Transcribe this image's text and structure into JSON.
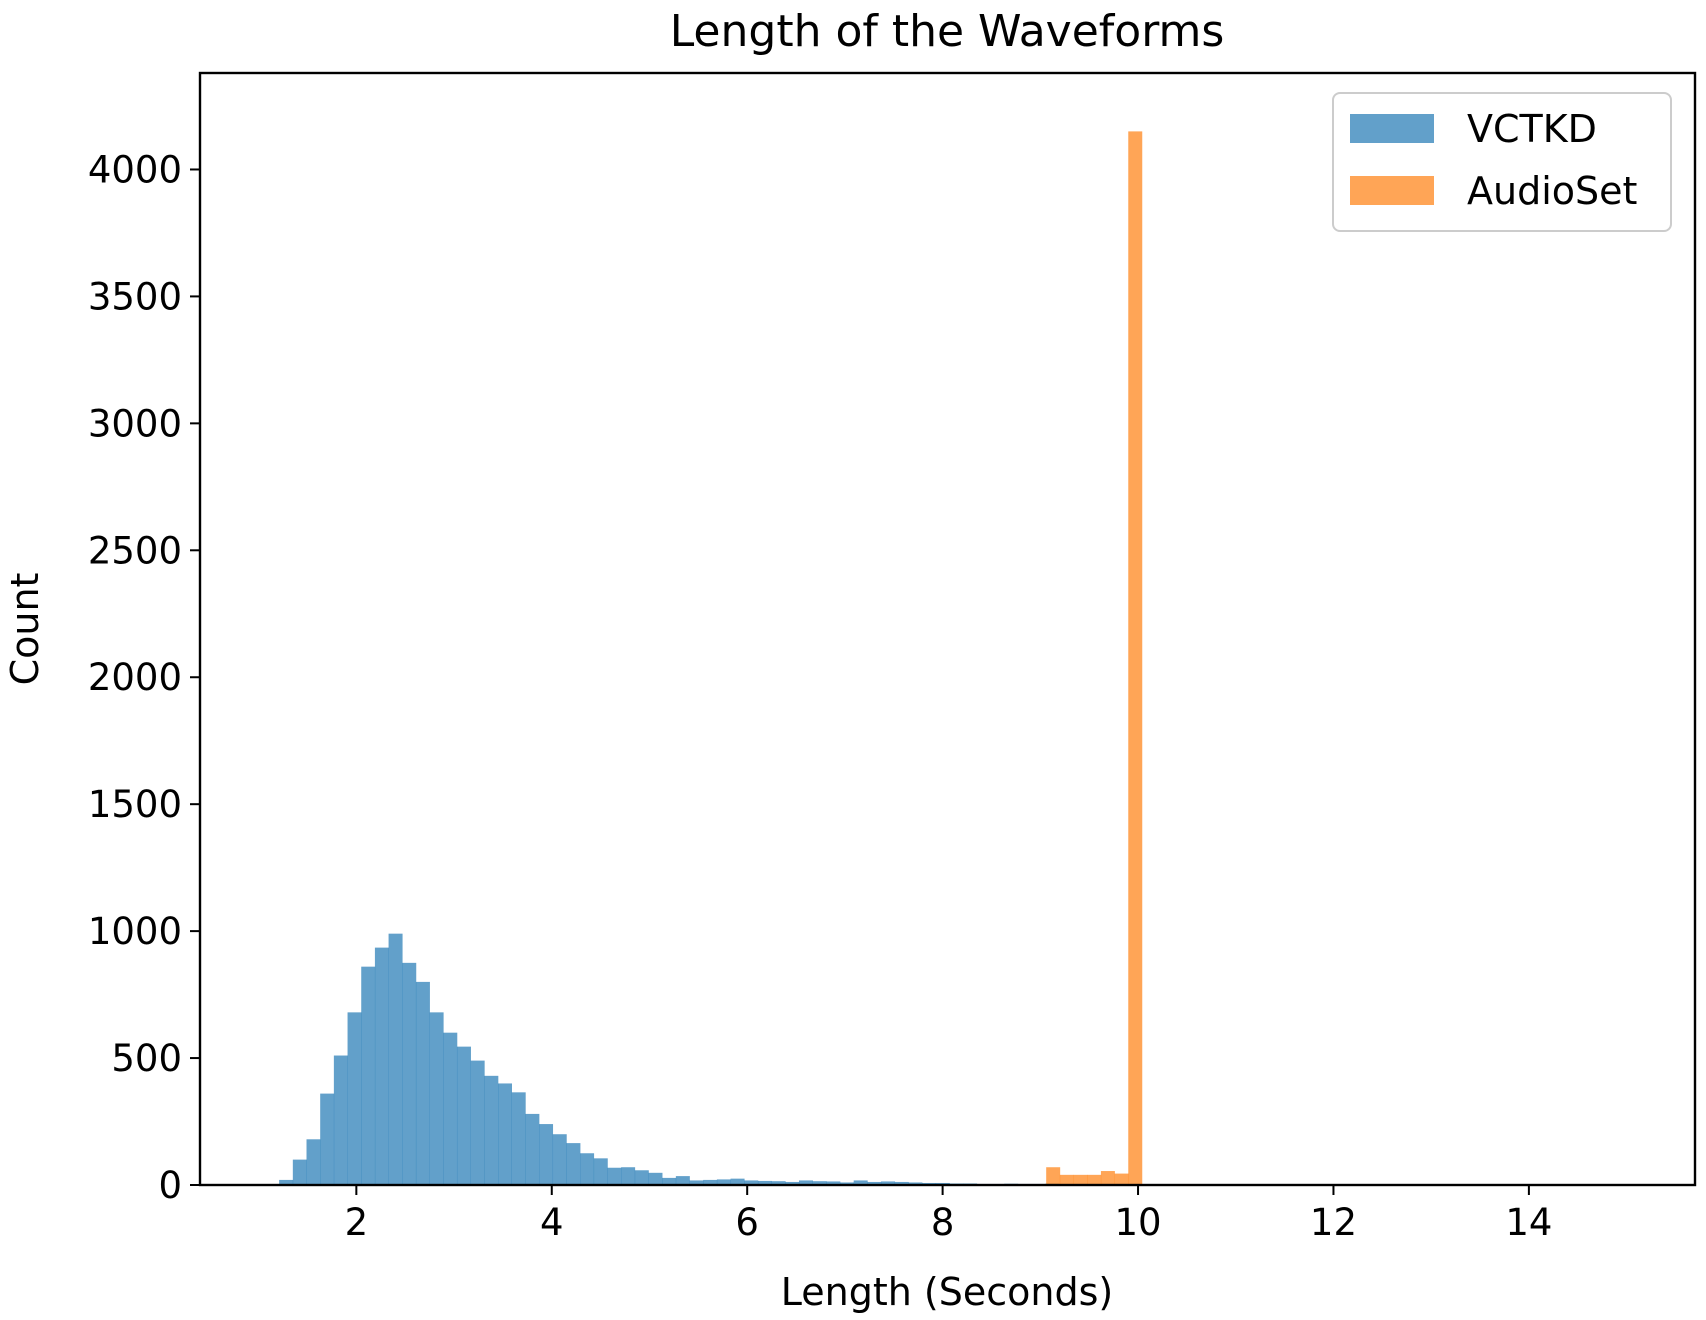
{
  "chart_data": {
    "type": "bar",
    "title": "Length of the Waveforms",
    "xlabel": "Length (Seconds)",
    "ylabel": "Count",
    "xlim": [
      0.4,
      15.7
    ],
    "ylim": [
      0,
      4380
    ],
    "xticks": [
      2,
      4,
      6,
      8,
      10,
      12,
      14
    ],
    "yticks": [
      0,
      500,
      1000,
      1500,
      2000,
      2500,
      3000,
      3500,
      4000
    ],
    "grid": false,
    "legend": "top-right",
    "bin_width": 0.14,
    "series": [
      {
        "name": "VCTKD",
        "color": "#1f77b4",
        "bin_start": 1.21,
        "values": [
          20,
          100,
          180,
          360,
          510,
          680,
          860,
          935,
          990,
          875,
          800,
          680,
          600,
          545,
          490,
          430,
          400,
          365,
          280,
          240,
          200,
          165,
          125,
          105,
          68,
          70,
          58,
          48,
          28,
          35,
          18,
          20,
          22,
          25,
          18,
          16,
          15,
          12,
          18,
          15,
          14,
          10,
          18,
          12,
          14,
          12,
          10,
          8,
          8,
          6,
          6,
          4,
          4,
          5,
          4,
          4,
          5,
          3,
          3
        ]
      },
      {
        "name": "AudioSet",
        "color": "#ff7f0e",
        "bin_start": 9.06,
        "values": [
          70,
          40,
          40,
          40,
          55,
          45,
          4150
        ]
      }
    ]
  }
}
